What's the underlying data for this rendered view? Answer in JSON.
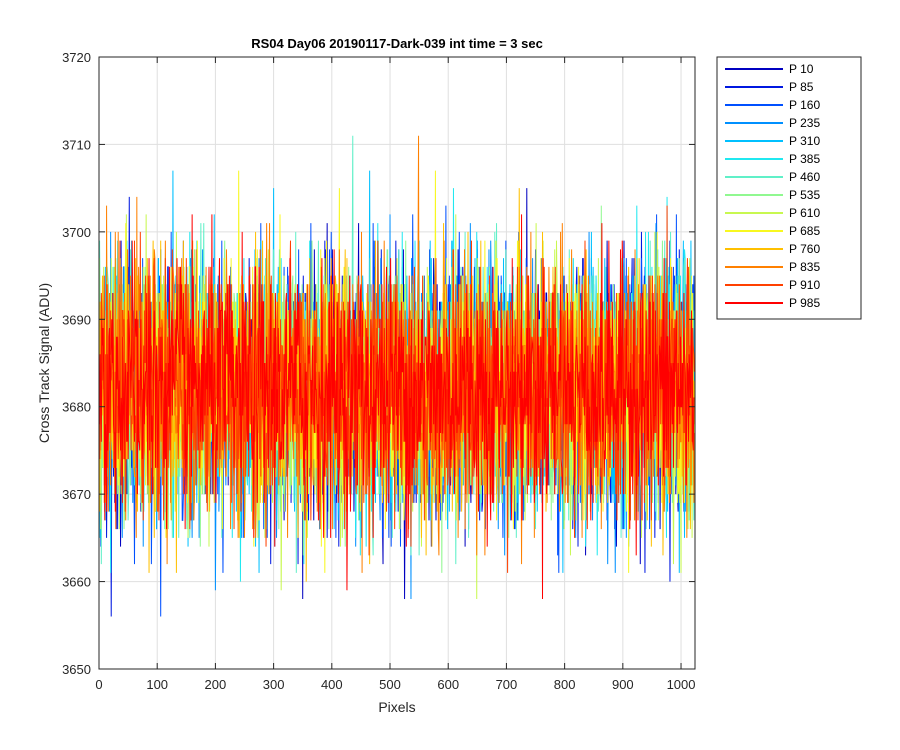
{
  "chart_data": {
    "type": "line",
    "title": "RS04 Day06 20190117-Dark-039 int time = 3 sec",
    "xlabel": "Pixels",
    "ylabel": "Cross Track Signal (ADU)",
    "xlim": [
      0,
      1024
    ],
    "ylim": [
      3650,
      3720
    ],
    "xticks": [
      0,
      100,
      200,
      300,
      400,
      500,
      600,
      700,
      800,
      900,
      1000
    ],
    "yticks": [
      3650,
      3660,
      3670,
      3680,
      3690,
      3700,
      3710,
      3720
    ],
    "grid": true,
    "legend_position": "outside-top-right",
    "noise": {
      "mean": 3682,
      "std": 7,
      "min": 3656,
      "max": 3711,
      "n_points": 1024
    },
    "series": [
      {
        "name": "P 10",
        "color": "#0000c0"
      },
      {
        "name": "P 85",
        "color": "#0018e0"
      },
      {
        "name": "P 160",
        "color": "#0050ff"
      },
      {
        "name": "P 235",
        "color": "#0090ff"
      },
      {
        "name": "P 310",
        "color": "#00c0ff"
      },
      {
        "name": "P 385",
        "color": "#20e8f0"
      },
      {
        "name": "P 460",
        "color": "#60f0c8"
      },
      {
        "name": "P 535",
        "color": "#90f890"
      },
      {
        "name": "P 610",
        "color": "#c8f850"
      },
      {
        "name": "P 685",
        "color": "#f8f820"
      },
      {
        "name": "P 760",
        "color": "#ffc000"
      },
      {
        "name": "P 835",
        "color": "#ff8000"
      },
      {
        "name": "P 910",
        "color": "#ff4000"
      },
      {
        "name": "P 985",
        "color": "#ff0000"
      }
    ]
  }
}
